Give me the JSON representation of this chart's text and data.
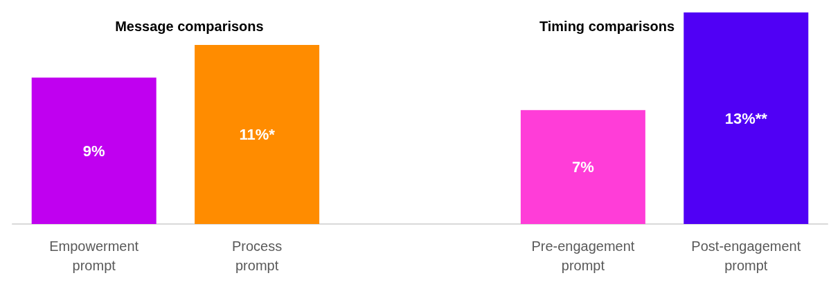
{
  "chart_data": {
    "type": "bar",
    "categories": [
      "Empowerment prompt",
      "Process prompt",
      null,
      "Pre-engagement prompt",
      "Post-engagement prompt"
    ],
    "values": [
      9,
      11,
      null,
      7,
      13
    ],
    "colors": [
      "#c000f0",
      "#ff8c00",
      "#cccccc",
      "#ff3dd8",
      "#5000f5"
    ],
    "value_labels": [
      "9%",
      "11%*",
      null,
      "7%",
      "13%**"
    ],
    "ylim": [
      0,
      13
    ],
    "annotations": [
      "Message comparisons",
      "Timing comparisons"
    ]
  }
}
